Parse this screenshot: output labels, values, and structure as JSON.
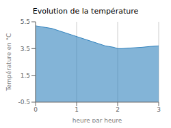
{
  "chart_data": {
    "type": "area",
    "title": "Evolution de la température",
    "xlabel": "heure par heure",
    "ylabel": "Température en °C",
    "x": [
      0,
      0.1,
      0.2,
      0.3,
      0.4,
      0.5,
      0.6,
      0.7,
      0.8,
      0.9,
      1.0,
      1.1,
      1.2,
      1.3,
      1.4,
      1.5,
      1.6,
      1.7,
      1.8,
      1.9,
      2.0,
      2.1,
      2.2,
      2.3,
      2.4,
      2.5,
      2.6,
      2.7,
      2.8,
      2.9,
      3.0
    ],
    "values": [
      5.2,
      5.15,
      5.1,
      5.05,
      5.0,
      4.9,
      4.8,
      4.7,
      4.6,
      4.5,
      4.4,
      4.3,
      4.2,
      4.1,
      4.0,
      3.9,
      3.8,
      3.7,
      3.65,
      3.6,
      3.5,
      3.5,
      3.52,
      3.54,
      3.56,
      3.58,
      3.6,
      3.63,
      3.66,
      3.68,
      3.7
    ],
    "xlim": [
      0,
      3
    ],
    "ylim": [
      -0.5,
      5.5
    ],
    "xticks": [
      0,
      1,
      2,
      3
    ],
    "yticks": [
      -0.5,
      1.5,
      3.5,
      5.5
    ],
    "grid": true
  }
}
